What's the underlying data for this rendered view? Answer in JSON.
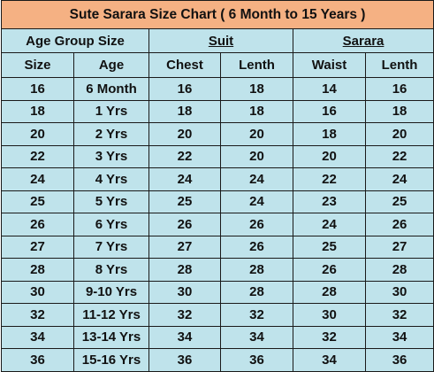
{
  "title": "Sute Sarara Size Chart ( 6 Month to 15 Years )",
  "groups": {
    "age_group": "Age Group Size",
    "suit": "Suit",
    "sarara": "Sarara"
  },
  "columns": [
    "Size",
    "Age",
    "Chest",
    "Lenth",
    "Waist",
    "Lenth"
  ],
  "rows": [
    [
      "16",
      "6 Month",
      "16",
      "18",
      "14",
      "16"
    ],
    [
      "18",
      "1 Yrs",
      "18",
      "18",
      "16",
      "18"
    ],
    [
      "20",
      "2 Yrs",
      "20",
      "20",
      "18",
      "20"
    ],
    [
      "22",
      "3 Yrs",
      "22",
      "20",
      "20",
      "22"
    ],
    [
      "24",
      "4 Yrs",
      "24",
      "24",
      "22",
      "24"
    ],
    [
      "25",
      "5 Yrs",
      "25",
      "24",
      "23",
      "25"
    ],
    [
      "26",
      "6 Yrs",
      "26",
      "26",
      "24",
      "26"
    ],
    [
      "27",
      "7 Yrs",
      "27",
      "26",
      "25",
      "27"
    ],
    [
      "28",
      "8 Yrs",
      "28",
      "28",
      "26",
      "28"
    ],
    [
      "30",
      "9-10 Yrs",
      "30",
      "28",
      "28",
      "30"
    ],
    [
      "32",
      "11-12 Yrs",
      "32",
      "32",
      "30",
      "32"
    ],
    [
      "34",
      "13-14 Yrs",
      "34",
      "34",
      "32",
      "34"
    ],
    [
      "36",
      "15-16 Yrs",
      "36",
      "36",
      "34",
      "36"
    ]
  ],
  "colors": {
    "title_bg": "#f5b183",
    "cell_bg": "#bfe3eb",
    "border": "#1a1a1a"
  }
}
